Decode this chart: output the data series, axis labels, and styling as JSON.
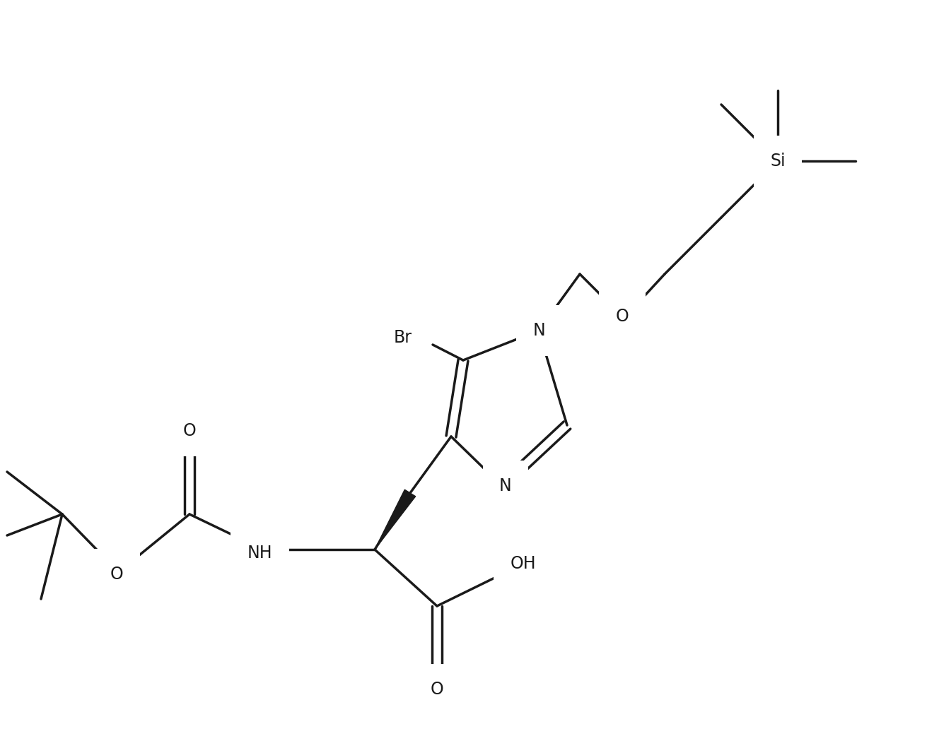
{
  "background_color": "#ffffff",
  "line_color": "#1a1a1a",
  "line_width": 2.5,
  "font_size": 16,
  "figsize": [
    13.28,
    10.42
  ],
  "dpi": 100,
  "xlim": [
    0,
    1328
  ],
  "ylim": [
    0,
    1042
  ]
}
